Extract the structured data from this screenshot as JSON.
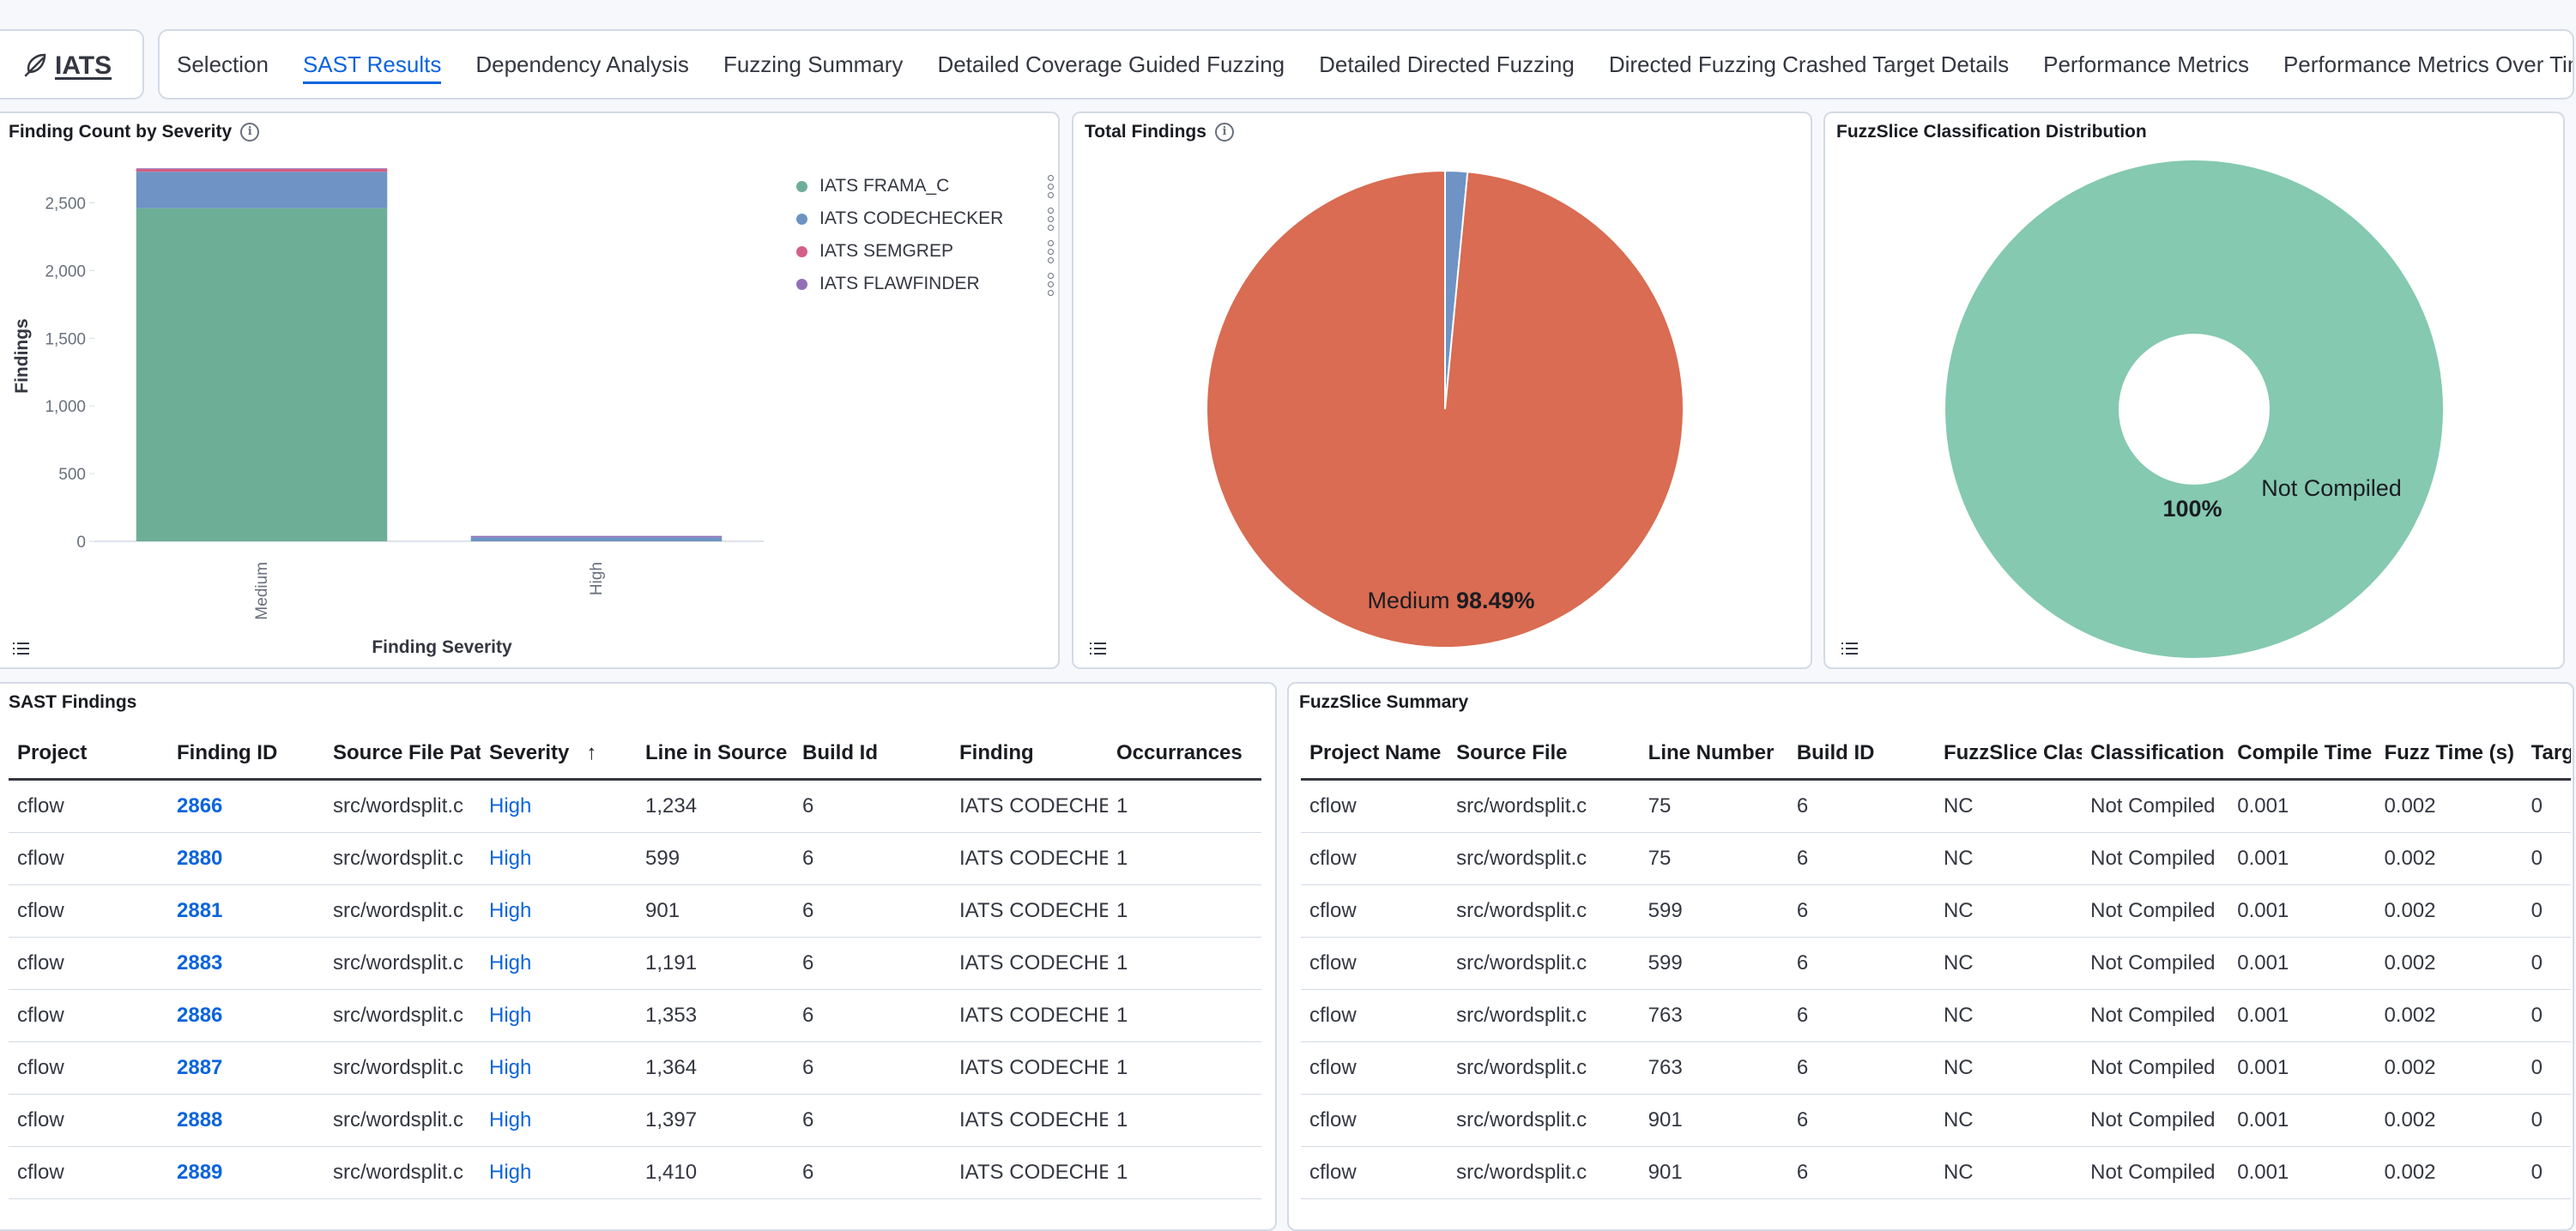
{
  "app": {
    "logo_text": "IATS",
    "logo_icon": "feather-icon"
  },
  "tabs": [
    {
      "label": "Selection",
      "active": false
    },
    {
      "label": "SAST Results",
      "active": true
    },
    {
      "label": "Dependency Analysis",
      "active": false
    },
    {
      "label": "Fuzzing Summary",
      "active": false
    },
    {
      "label": "Detailed Coverage Guided Fuzzing",
      "active": false
    },
    {
      "label": "Detailed Directed Fuzzing",
      "active": false
    },
    {
      "label": "Directed Fuzzing Crashed Target Details",
      "active": false
    },
    {
      "label": "Performance Metrics",
      "active": false
    },
    {
      "label": "Performance Metrics Over Time",
      "active": false
    }
  ],
  "colors": {
    "accent": "#0b64dd",
    "frama_c": "#6dae96",
    "codechecker": "#6e93c4",
    "semgrep": "#d36086",
    "flawfinder": "#9170b8",
    "medium_slice": "#d96c52",
    "donut": "#84c9b0"
  },
  "bar_panel": {
    "title": "Finding Count by Severity"
  },
  "pie_panel": {
    "title": "Total Findings",
    "label_name": "Medium",
    "label_value": "98.49%"
  },
  "donut_panel": {
    "title": "FuzzSlice Classification Distribution",
    "pct_label": "100%",
    "name_label": "Not Compiled"
  },
  "chart_data": [
    {
      "type": "bar",
      "stacked": true,
      "title": "Finding Count by Severity",
      "xlabel": "Finding Severity",
      "ylabel": "Findings",
      "categories": [
        "Medium",
        "High"
      ],
      "ylim": [
        0,
        2750
      ],
      "yticks": [
        0,
        500,
        1000,
        1500,
        2000,
        2500
      ],
      "ytick_labels": [
        "0",
        "500",
        "1,000",
        "1,500",
        "2,000",
        "2,500"
      ],
      "legend_position": "top-right",
      "series": [
        {
          "name": "IATS FRAMA_C",
          "values": [
            2460,
            0
          ],
          "color": "#6dae96"
        },
        {
          "name": "IATS CODECHECKER",
          "values": [
            270,
            30
          ],
          "color": "#6e93c4"
        },
        {
          "name": "IATS SEMGREP",
          "values": [
            20,
            0
          ],
          "color": "#d36086"
        },
        {
          "name": "IATS FLAWFINDER",
          "values": [
            5,
            10
          ],
          "color": "#9170b8"
        }
      ]
    },
    {
      "type": "pie",
      "title": "Total Findings",
      "slices": [
        {
          "name": "Medium",
          "value": 98.49,
          "color": "#d96c52"
        },
        {
          "name": "High",
          "value": 1.51,
          "color": "#6e93c4"
        }
      ]
    },
    {
      "type": "pie",
      "donut": true,
      "title": "FuzzSlice Classification Distribution",
      "slices": [
        {
          "name": "Not Compiled",
          "value": 100,
          "color": "#84c9b0"
        }
      ]
    }
  ],
  "sast_table": {
    "title": "SAST Findings",
    "columns": [
      "Project",
      "Finding ID",
      "Source File Path",
      "Severity",
      "Line in Source",
      "Build Id",
      "Finding",
      "Occurrances"
    ],
    "sort_icon": "arrow-up-icon",
    "rows": [
      [
        "cflow",
        "2866",
        "src/wordsplit.c",
        "High",
        "1,234",
        "6",
        "IATS CODECHECKER",
        "1"
      ],
      [
        "cflow",
        "2880",
        "src/wordsplit.c",
        "High",
        "599",
        "6",
        "IATS CODECHECKER",
        "1"
      ],
      [
        "cflow",
        "2881",
        "src/wordsplit.c",
        "High",
        "901",
        "6",
        "IATS CODECHECKER",
        "1"
      ],
      [
        "cflow",
        "2883",
        "src/wordsplit.c",
        "High",
        "1,191",
        "6",
        "IATS CODECHECKER",
        "1"
      ],
      [
        "cflow",
        "2886",
        "src/wordsplit.c",
        "High",
        "1,353",
        "6",
        "IATS CODECHECKER",
        "1"
      ],
      [
        "cflow",
        "2887",
        "src/wordsplit.c",
        "High",
        "1,364",
        "6",
        "IATS CODECHECKER",
        "1"
      ],
      [
        "cflow",
        "2888",
        "src/wordsplit.c",
        "High",
        "1,397",
        "6",
        "IATS CODECHECKER",
        "1"
      ],
      [
        "cflow",
        "2889",
        "src/wordsplit.c",
        "High",
        "1,410",
        "6",
        "IATS CODECHECKER",
        "1"
      ]
    ]
  },
  "fuzz_table": {
    "title": "FuzzSlice Summary",
    "columns": [
      "Project Name",
      "Source File",
      "Line Number",
      "Build ID",
      "FuzzSlice Classification",
      "Classification",
      "Compile Time",
      "Fuzz Time (s)",
      "Target"
    ],
    "rows": [
      [
        "cflow",
        "src/wordsplit.c",
        "75",
        "6",
        "NC",
        "Not Compiled",
        "0.001",
        "0.002",
        "0"
      ],
      [
        "cflow",
        "src/wordsplit.c",
        "75",
        "6",
        "NC",
        "Not Compiled",
        "0.001",
        "0.002",
        "0"
      ],
      [
        "cflow",
        "src/wordsplit.c",
        "599",
        "6",
        "NC",
        "Not Compiled",
        "0.001",
        "0.002",
        "0"
      ],
      [
        "cflow",
        "src/wordsplit.c",
        "599",
        "6",
        "NC",
        "Not Compiled",
        "0.001",
        "0.002",
        "0"
      ],
      [
        "cflow",
        "src/wordsplit.c",
        "763",
        "6",
        "NC",
        "Not Compiled",
        "0.001",
        "0.002",
        "0"
      ],
      [
        "cflow",
        "src/wordsplit.c",
        "763",
        "6",
        "NC",
        "Not Compiled",
        "0.001",
        "0.002",
        "0"
      ],
      [
        "cflow",
        "src/wordsplit.c",
        "901",
        "6",
        "NC",
        "Not Compiled",
        "0.001",
        "0.002",
        "0"
      ],
      [
        "cflow",
        "src/wordsplit.c",
        "901",
        "6",
        "NC",
        "Not Compiled",
        "0.001",
        "0.002",
        "0"
      ]
    ]
  }
}
